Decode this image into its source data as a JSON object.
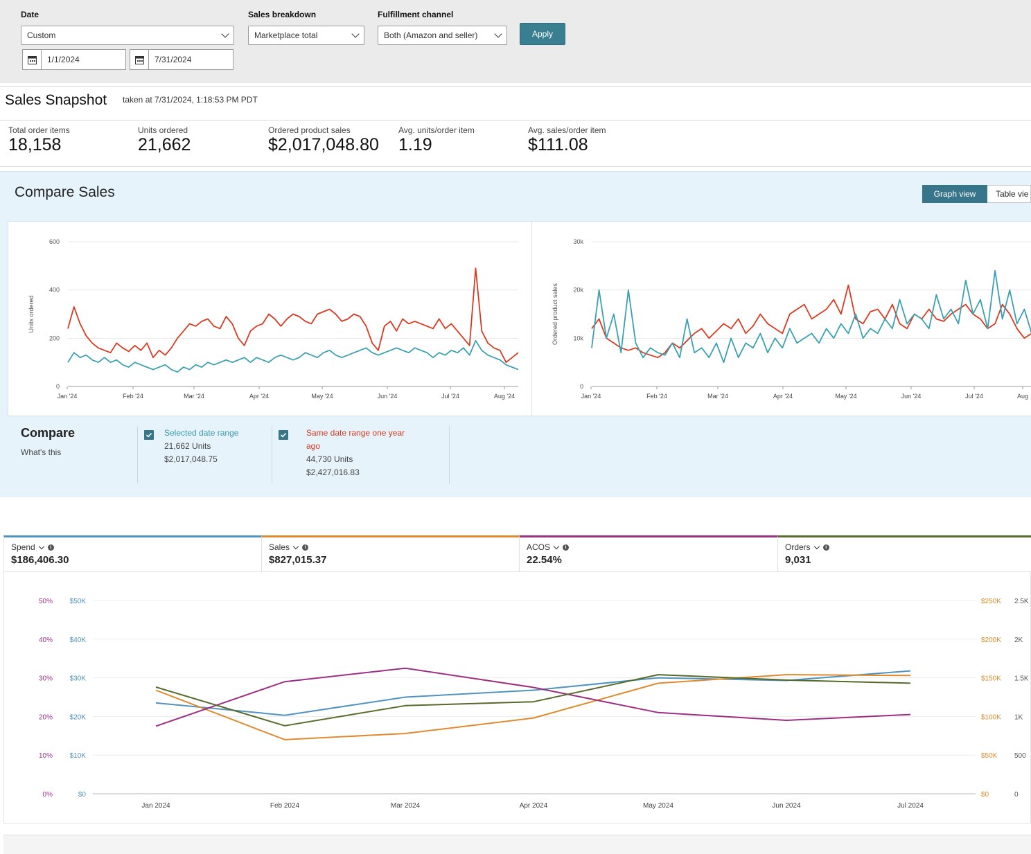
{
  "filters": {
    "date": {
      "label": "Date",
      "value": "Custom",
      "start": "1/1/2024",
      "end": "7/31/2024"
    },
    "sales_breakdown": {
      "label": "Sales breakdown",
      "value": "Marketplace total"
    },
    "fulfillment": {
      "label": "Fulfillment channel",
      "value": "Both (Amazon and seller)"
    },
    "apply_label": "Apply"
  },
  "snapshot": {
    "title": "Sales Snapshot",
    "taken": "taken at 7/31/2024, 1:18:53 PM PDT",
    "metrics": [
      {
        "label": "Total order items",
        "value": "18,158"
      },
      {
        "label": "Units ordered",
        "value": "21,662"
      },
      {
        "label": "Ordered product sales",
        "value": "$2,017,048.80"
      },
      {
        "label": "Avg. units/order item",
        "value": "1.19"
      },
      {
        "label": "Avg. sales/order item",
        "value": "$111.08"
      }
    ]
  },
  "compare": {
    "title": "Compare Sales",
    "tabs": {
      "graph": "Graph view",
      "table": "Table vie"
    },
    "legend_title": "Compare",
    "whats_this": "What's this",
    "selected": {
      "label": "Selected date range",
      "units": "21,662 Units",
      "sales": "$2,017,048.75"
    },
    "last_year": {
      "label_1": "Same date range one year",
      "label_2": "ago",
      "units": "44,730 Units",
      "sales": "$2,427,016.83"
    }
  },
  "ad_metrics": [
    {
      "label": "Spend",
      "value": "$186,406.30",
      "color": "#4f93c0"
    },
    {
      "label": "Sales",
      "value": "$827,015.37",
      "color": "#e08a2e"
    },
    {
      "label": "ACOS",
      "value": "22.54%",
      "color": "#9c2f82"
    },
    {
      "label": "Orders",
      "value": "9,031",
      "color": "#566b2a"
    }
  ],
  "colors": {
    "selected": "#3aa0b1",
    "last_year": "#d9391f",
    "accent": "#37758a"
  },
  "chart_data": [
    {
      "type": "line",
      "ylabel": "Units ordered",
      "ylim": [
        0,
        600
      ],
      "yticks": [
        "0",
        "200",
        "400",
        "600"
      ],
      "xticks": [
        "Jan '24",
        "Feb '24",
        "Mar '24",
        "Apr '24",
        "May '24",
        "Jun '24",
        "Jul '24",
        "Aug '24"
      ],
      "series": [
        {
          "name": "Same date range one year ago",
          "color": "#d9391f",
          "values": [
            240,
            330,
            260,
            210,
            180,
            160,
            150,
            140,
            180,
            160,
            145,
            170,
            150,
            180,
            120,
            150,
            130,
            160,
            200,
            230,
            260,
            250,
            270,
            280,
            250,
            240,
            290,
            260,
            200,
            170,
            230,
            250,
            260,
            300,
            280,
            250,
            280,
            300,
            290,
            270,
            260,
            300,
            310,
            320,
            300,
            270,
            280,
            300,
            290,
            250,
            180,
            150,
            250,
            270,
            230,
            280,
            260,
            270,
            260,
            250,
            240,
            280,
            240,
            260,
            230,
            200,
            170,
            490,
            230,
            180,
            160,
            150,
            100,
            120,
            140
          ]
        },
        {
          "name": "Selected date range",
          "color": "#3aa0b1",
          "values": [
            100,
            140,
            120,
            130,
            110,
            100,
            120,
            100,
            110,
            90,
            80,
            100,
            90,
            80,
            70,
            80,
            90,
            70,
            60,
            80,
            70,
            90,
            80,
            100,
            90,
            100,
            110,
            100,
            110,
            120,
            100,
            120,
            110,
            100,
            120,
            130,
            120,
            110,
            120,
            140,
            130,
            120,
            140,
            150,
            130,
            120,
            130,
            140,
            150,
            160,
            140,
            130,
            140,
            150,
            160,
            150,
            140,
            160,
            150,
            140,
            120,
            140,
            130,
            150,
            140,
            160,
            130,
            190,
            150,
            130,
            120,
            110,
            90,
            80,
            70
          ]
        }
      ]
    },
    {
      "type": "line",
      "ylabel": "Ordered product sales",
      "ylim": [
        0,
        30000
      ],
      "yticks": [
        "0",
        "10k",
        "20k",
        "30k"
      ],
      "xticks": [
        "Jan '24",
        "Feb '24",
        "Mar '24",
        "Apr '24",
        "May '24",
        "Jun '24",
        "Jul '24",
        "Aug"
      ],
      "series": [
        {
          "name": "Same date range one year ago",
          "color": "#d9391f",
          "values": [
            12000,
            14000,
            10000,
            9000,
            8000,
            7500,
            8000,
            7000,
            6500,
            6000,
            7000,
            9000,
            8000,
            9500,
            11000,
            12000,
            10000,
            11500,
            13000,
            12000,
            14000,
            11000,
            12500,
            15000,
            13000,
            12000,
            11000,
            15000,
            16000,
            17000,
            14000,
            15000,
            16000,
            18000,
            15000,
            21000,
            14000,
            13000,
            15500,
            16000,
            14000,
            17000,
            13000,
            12000,
            15000,
            14000,
            16000,
            14000,
            13500,
            15000,
            16000,
            17000,
            15000,
            14000,
            12000,
            13000,
            17000,
            15000,
            12000,
            10000,
            11000
          ]
        },
        {
          "name": "Selected date range",
          "color": "#3aa0b1",
          "values": [
            8000,
            20000,
            10000,
            15000,
            7000,
            20000,
            9000,
            6000,
            8000,
            7000,
            6500,
            9000,
            6000,
            14000,
            7000,
            8000,
            6000,
            9000,
            5000,
            10000,
            6000,
            9000,
            8000,
            11000,
            7000,
            10000,
            8000,
            12000,
            9000,
            10000,
            11000,
            9000,
            12000,
            10000,
            13000,
            11000,
            15000,
            10000,
            12000,
            11000,
            14000,
            12000,
            18000,
            13000,
            15000,
            14000,
            12000,
            19000,
            14000,
            16000,
            13000,
            22000,
            15000,
            18000,
            12000,
            24000,
            14000,
            20000,
            13000,
            16000,
            11000
          ]
        }
      ]
    },
    {
      "type": "line",
      "categories": [
        "Jan 2024",
        "Feb 2024",
        "Mar 2024",
        "Apr 2024",
        "May 2024",
        "Jun 2024",
        "Jul 2024"
      ],
      "left_axes": [
        {
          "ticks": [
            "0%",
            "10%",
            "20%",
            "30%",
            "40%",
            "50%"
          ],
          "color": "#9c2f82"
        },
        {
          "ticks": [
            "$0",
            "$10K",
            "$20K",
            "$30K",
            "$40K",
            "$50K"
          ],
          "color": "#4f93c0"
        }
      ],
      "right_axes": [
        {
          "ticks": [
            "$0",
            "$50K",
            "$100K",
            "$150K",
            "$200K",
            "$250K"
          ],
          "color": "#e08a2e"
        },
        {
          "ticks": [
            "0",
            "500",
            "1K",
            "1.5K",
            "2K",
            "2.5K"
          ],
          "color": "#555555"
        }
      ],
      "series": [
        {
          "name": "Spend",
          "color": "#4f93c0",
          "values": [
            23500,
            20300,
            25000,
            26800,
            30000,
            29300,
            31800
          ]
        },
        {
          "name": "Sales",
          "color": "#e08a2e",
          "values": [
            134000,
            70000,
            78000,
            98000,
            143000,
            154000,
            153000
          ]
        },
        {
          "name": "ACOS",
          "color": "#9c2f82",
          "values": [
            17.5,
            29,
            32.5,
            27.5,
            21,
            19,
            20.5
          ]
        },
        {
          "name": "Orders",
          "color": "#566b2a",
          "values": [
            1380,
            880,
            1140,
            1190,
            1540,
            1470,
            1430
          ]
        }
      ]
    }
  ]
}
